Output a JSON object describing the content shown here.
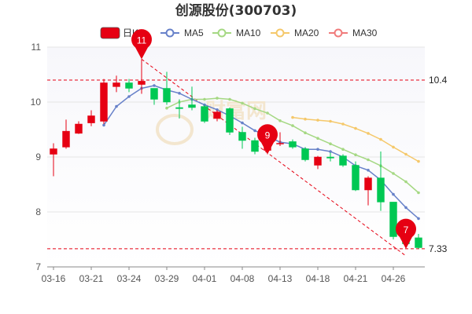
{
  "chart_data": {
    "type": "candlestick",
    "title": "创源股份(300703)",
    "ylim": [
      7,
      11
    ],
    "yticks": [
      7,
      8,
      9,
      10,
      11
    ],
    "xtick_labels": [
      "03-16",
      "03-21",
      "03-24",
      "03-29",
      "04-01",
      "04-08",
      "04-13",
      "04-18",
      "04-21",
      "04-26"
    ],
    "xtick_index": [
      0,
      3,
      6,
      9,
      12,
      15,
      18,
      21,
      24,
      27
    ],
    "legend": [
      {
        "name": "日K",
        "color": "#e60012"
      },
      {
        "name": "MA5",
        "color": "#6781c9"
      },
      {
        "name": "MA10",
        "color": "#a5d883"
      },
      {
        "name": "MA20",
        "color": "#f5c86a"
      },
      {
        "name": "MA30",
        "color": "#f07b7b"
      }
    ],
    "colors": {
      "up": "#e60012",
      "down": "#00c853",
      "grid": "#e5e5e5",
      "ref": "#e60012"
    },
    "candles": [
      {
        "open": 9.05,
        "close": 9.15,
        "high": 9.25,
        "low": 8.65
      },
      {
        "open": 9.18,
        "close": 9.47,
        "high": 9.68,
        "low": 9.15
      },
      {
        "open": 9.43,
        "close": 9.6,
        "high": 9.65,
        "low": 9.42
      },
      {
        "open": 9.62,
        "close": 9.75,
        "high": 9.85,
        "low": 9.56
      },
      {
        "open": 9.65,
        "close": 10.35,
        "high": 10.42,
        "low": 9.6
      },
      {
        "open": 10.28,
        "close": 10.35,
        "high": 10.48,
        "low": 10.18
      },
      {
        "open": 10.35,
        "close": 10.25,
        "high": 10.42,
        "low": 10.18
      },
      {
        "open": 10.32,
        "close": 10.38,
        "high": 10.78,
        "low": 10.15
      },
      {
        "open": 10.25,
        "close": 10.05,
        "high": 10.25,
        "low": 9.95
      },
      {
        "open": 10.25,
        "close": 10.0,
        "high": 10.55,
        "low": 9.95
      },
      {
        "open": 9.9,
        "close": 9.88,
        "high": 10.05,
        "low": 9.7
      },
      {
        "open": 9.95,
        "close": 9.9,
        "high": 10.28,
        "low": 9.85
      },
      {
        "open": 9.92,
        "close": 9.65,
        "high": 9.95,
        "low": 9.62
      },
      {
        "open": 9.7,
        "close": 9.82,
        "high": 9.85,
        "low": 9.65
      },
      {
        "open": 9.88,
        "close": 9.45,
        "high": 9.9,
        "low": 9.4
      },
      {
        "open": 9.45,
        "close": 9.3,
        "high": 9.55,
        "low": 9.15
      },
      {
        "open": 9.3,
        "close": 9.1,
        "high": 9.35,
        "low": 9.05
      },
      {
        "open": 9.12,
        "close": 9.28,
        "high": 9.38,
        "low": 9.05
      },
      {
        "open": 9.25,
        "close": 9.25,
        "high": 9.45,
        "low": 9.2
      },
      {
        "open": 9.28,
        "close": 9.18,
        "high": 9.32,
        "low": 9.15
      },
      {
        "open": 9.15,
        "close": 8.95,
        "high": 9.18,
        "low": 8.92
      },
      {
        "open": 8.85,
        "close": 9.0,
        "high": 9.02,
        "low": 8.78
      },
      {
        "open": 9.0,
        "close": 8.98,
        "high": 9.08,
        "low": 8.92
      },
      {
        "open": 9.02,
        "close": 8.85,
        "high": 9.05,
        "low": 8.82
      },
      {
        "open": 8.85,
        "close": 8.4,
        "high": 8.92,
        "low": 8.38
      },
      {
        "open": 8.4,
        "close": 8.62,
        "high": 8.65,
        "low": 8.12
      },
      {
        "open": 8.62,
        "close": 8.18,
        "high": 9.1,
        "low": 8.02
      },
      {
        "open": 8.18,
        "close": 7.55,
        "high": 8.18,
        "low": 7.5
      },
      {
        "open": 7.55,
        "close": 7.42,
        "high": 7.62,
        "low": 7.38
      },
      {
        "open": 7.53,
        "close": 7.35,
        "high": 7.6,
        "low": 7.33
      }
    ],
    "ma5": [
      null,
      null,
      null,
      null,
      9.58,
      9.92,
      10.1,
      10.25,
      10.3,
      10.22,
      10.16,
      10.05,
      9.95,
      9.86,
      9.75,
      9.62,
      9.48,
      9.38,
      9.27,
      9.24,
      9.14,
      9.14,
      9.1,
      9.0,
      8.84,
      8.76,
      8.58,
      8.32,
      8.08,
      7.88
    ],
    "ma10": [
      null,
      null,
      null,
      null,
      null,
      null,
      null,
      null,
      null,
      9.89,
      10.0,
      10.05,
      10.05,
      10.07,
      10.05,
      9.98,
      9.88,
      9.8,
      9.66,
      9.57,
      9.44,
      9.34,
      9.24,
      9.14,
      9.04,
      8.95,
      8.84,
      8.7,
      8.55,
      8.35
    ],
    "ma20": [
      null,
      null,
      null,
      null,
      null,
      null,
      null,
      null,
      null,
      null,
      null,
      null,
      null,
      null,
      null,
      null,
      null,
      null,
      null,
      9.72,
      9.69,
      9.67,
      9.65,
      9.6,
      9.52,
      9.43,
      9.32,
      9.18,
      9.05,
      8.92
    ],
    "ma30": [],
    "reference_lines": [
      {
        "value": 10.4,
        "label": "10.4"
      },
      {
        "value": 7.33,
        "label": "7.33"
      }
    ],
    "trend_line": {
      "from_index": 7,
      "from_value": 10.78,
      "to_index": 28,
      "to_value": 7.2
    },
    "markers": [
      {
        "label": "11",
        "index": 7,
        "value": 10.78
      },
      {
        "label": "9",
        "index": 17,
        "value": 9.05
      },
      {
        "label": "7",
        "index": 28,
        "value": 7.33
      }
    ],
    "watermark": "财富网"
  }
}
